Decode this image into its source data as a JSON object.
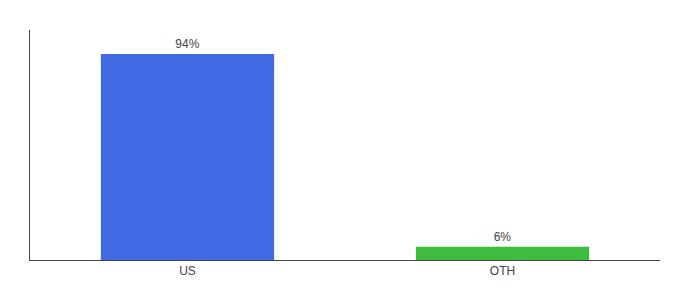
{
  "chart_data": {
    "type": "bar",
    "categories": [
      "US",
      "OTH"
    ],
    "values": [
      94,
      6
    ],
    "value_labels": [
      "94%",
      "6%"
    ],
    "colors": [
      "#4169e1",
      "#3dbc3d"
    ],
    "ylim": [
      0,
      105
    ],
    "data_labels": true,
    "tick_labels": "x",
    "grid": false
  }
}
